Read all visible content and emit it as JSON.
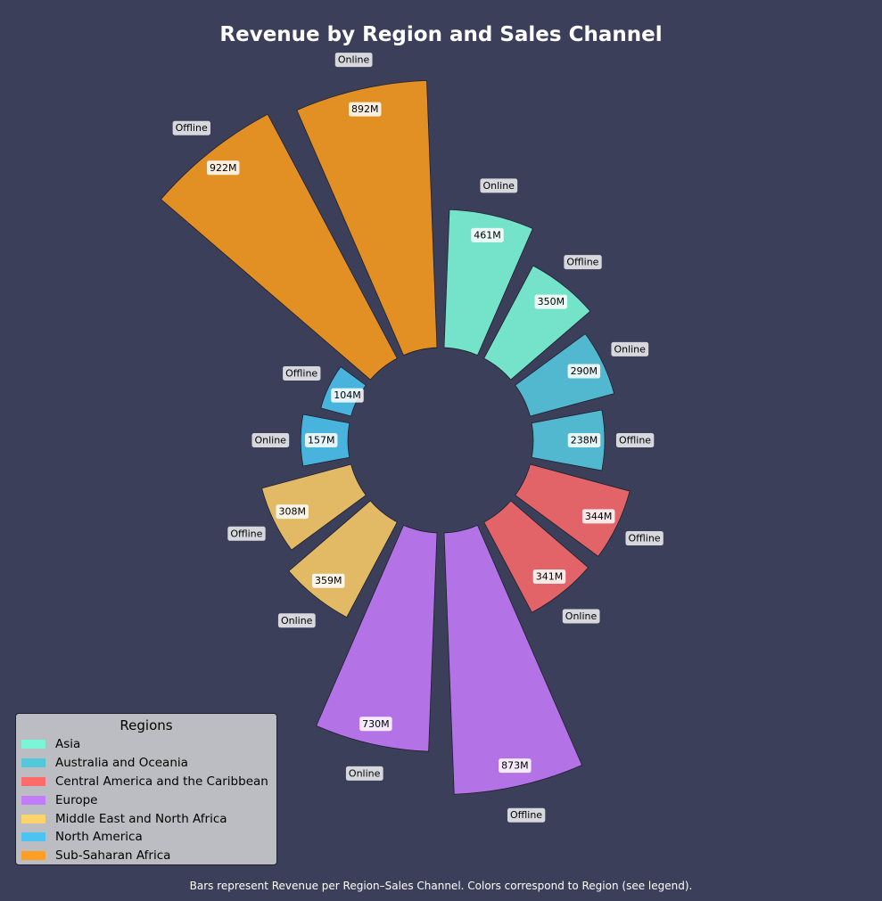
{
  "chart_data": {
    "type": "bar",
    "polar": true,
    "title": "Revenue by Region and Sales Channel",
    "caption": "Bars represent Revenue per Region–Sales Channel. Colors correspond to Region (see legend).",
    "legend": {
      "title": "Regions",
      "placement": "lower-left",
      "entries": [
        {
          "name": "Asia",
          "color": "#7af5d5"
        },
        {
          "name": "Australia and Oceania",
          "color": "#54c8db"
        },
        {
          "name": "Central America and the Caribbean",
          "color": "#ff6b6b"
        },
        {
          "name": "Europe",
          "color": "#c27cfa"
        },
        {
          "name": "Middle East and North Africa",
          "color": "#fdd36c"
        },
        {
          "name": "North America",
          "color": "#4cc3f1"
        },
        {
          "name": "Sub-Saharan Africa",
          "color": "#ffa024"
        }
      ]
    },
    "colors": {
      "Asia": "#74e3c9",
      "Australia and Oceania": "#52b8cf",
      "Central America and the Caribbean": "#e26468",
      "Europe": "#b373e6",
      "Middle East and North Africa": "#e2ba66",
      "North America": "#48b4de",
      "Sub-Saharan Africa": "#e28f24"
    },
    "value_unit": "M",
    "bars": [
      {
        "region": "Asia",
        "channel": "Online",
        "value": 461,
        "label": "461M"
      },
      {
        "region": "Asia",
        "channel": "Offline",
        "value": 350,
        "label": "350M"
      },
      {
        "region": "Australia and Oceania",
        "channel": "Online",
        "value": 290,
        "label": "290M"
      },
      {
        "region": "Australia and Oceania",
        "channel": "Offline",
        "value": 238,
        "label": "238M"
      },
      {
        "region": "Central America and the Caribbean",
        "channel": "Offline",
        "value": 344,
        "label": "344M"
      },
      {
        "region": "Central America and the Caribbean",
        "channel": "Online",
        "value": 341,
        "label": "341M"
      },
      {
        "region": "Europe",
        "channel": "Offline",
        "value": 873,
        "label": "873M"
      },
      {
        "region": "Europe",
        "channel": "Online",
        "value": 730,
        "label": "730M"
      },
      {
        "region": "Middle East and North Africa",
        "channel": "Online",
        "value": 359,
        "label": "359M"
      },
      {
        "region": "Middle East and North Africa",
        "channel": "Offline",
        "value": 308,
        "label": "308M"
      },
      {
        "region": "North America",
        "channel": "Online",
        "value": 157,
        "label": "157M"
      },
      {
        "region": "North America",
        "channel": "Offline",
        "value": 104,
        "label": "104M"
      },
      {
        "region": "Sub-Saharan Africa",
        "channel": "Offline",
        "value": 922,
        "label": "922M"
      },
      {
        "region": "Sub-Saharan Africa",
        "channel": "Online",
        "value": 892,
        "label": "892M"
      }
    ],
    "grid": false
  }
}
